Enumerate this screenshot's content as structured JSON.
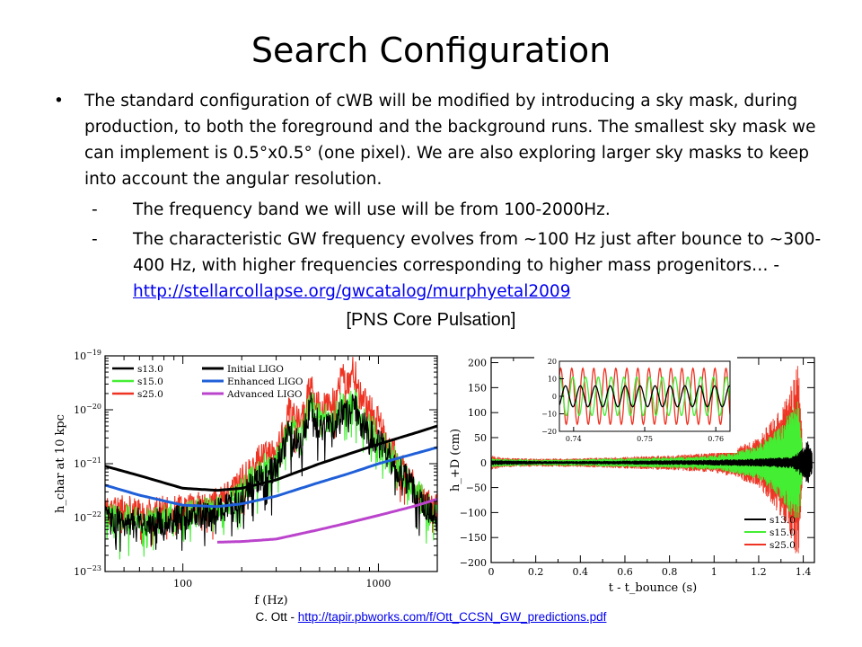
{
  "slide": {
    "title": "Search Configuration",
    "bullet_mark": "•",
    "bullet_text": "The standard configuration of cWB will be modified by introducing a sky mask, during production, to both the foreground and the background runs. The smallest sky mask we can implement is 0.5°x0.5° (one pixel). We are also  exploring larger sky masks to keep into account the angular resolution.",
    "sub_mark": "-",
    "sub1_text": "The frequency band we will use will be from 100-2000Hz.",
    "sub2_text": "The characteristic GW frequency evolves from ~100 Hz just after bounce to ~300-400 Hz, with higher frequencies corresponding to higher mass progenitors… - ",
    "sub2_link": "http://stellarcollapse.org/gwcatalog/murphyetal2009",
    "figure_caption": "[PNS Core Pulsation]",
    "credit_prefix": "C. Ott - ",
    "credit_link": "http://tapir.pbworks.com/f/Ott_CCSN_GW_predictions.pdf"
  },
  "colors": {
    "s13": "#000000",
    "s15": "#44ee33",
    "s25": "#ee3322",
    "initial": "#000000",
    "enhanced": "#1f5fd8",
    "advanced": "#bb44cc"
  },
  "chart_data": [
    {
      "type": "line",
      "xlabel": "f (Hz)",
      "ylabel": "h_char at 10 kpc",
      "x_scale": "log",
      "y_scale": "log",
      "xlim": [
        40,
        2000
      ],
      "ylim": [
        1e-23,
        1e-19
      ],
      "x_ticks": [
        100,
        1000
      ],
      "x_tick_labels": [
        "100",
        "1000"
      ],
      "y_tick_labels": [
        "10^-19",
        "10^-20",
        "10^-21",
        "10^-22",
        "10^-23"
      ],
      "legend_left": [
        "s13.0",
        "s15.0",
        "s25.0"
      ],
      "legend_right": [
        "Initial LIGO",
        "Enhanced LIGO",
        "Advanced LIGO"
      ],
      "series": [
        {
          "name": "Initial LIGO",
          "x": [
            40,
            60,
            100,
            150,
            200,
            300,
            500,
            700,
            1000,
            1500,
            2000
          ],
          "y": [
            9e-22,
            6e-22,
            3.5e-22,
            3.2e-22,
            3.5e-22,
            5e-22,
            1e-21,
            1.5e-21,
            2.3e-21,
            3.6e-21,
            5e-21
          ]
        },
        {
          "name": "Enhanced LIGO",
          "x": [
            40,
            60,
            100,
            150,
            200,
            300,
            500,
            700,
            1000,
            1500,
            2000
          ],
          "y": [
            4e-22,
            2.6e-22,
            1.7e-22,
            1.6e-22,
            1.8e-22,
            2.5e-22,
            4.5e-22,
            6.5e-22,
            1e-21,
            1.5e-21,
            2e-21
          ]
        },
        {
          "name": "Advanced LIGO",
          "x": [
            150,
            200,
            300,
            500,
            700,
            1000,
            1500,
            2000
          ],
          "y": [
            3.5e-23,
            3.6e-23,
            4e-23,
            6e-23,
            8e-23,
            1.1e-22,
            1.6e-22,
            2.2e-22
          ]
        },
        {
          "name": "s25.0",
          "x": [
            40,
            70,
            100,
            150,
            200,
            250,
            300,
            350,
            400,
            450,
            500,
            600,
            650,
            700,
            750,
            800,
            1000,
            1300,
            1700,
            2000
          ],
          "y": [
            1.5e-22,
            1.3e-22,
            1.5e-22,
            2e-22,
            5e-22,
            1.3e-21,
            1.5e-21,
            1e-20,
            5e-21,
            3e-20,
            1e-20,
            1.5e-20,
            4e-20,
            3e-20,
            6e-20,
            2e-20,
            6e-21,
            1e-21,
            2e-22,
            1.5e-22
          ]
        },
        {
          "name": "s15.0",
          "x": [
            40,
            70,
            100,
            150,
            200,
            250,
            300,
            350,
            400,
            450,
            500,
            600,
            650,
            700,
            750,
            800,
            1000,
            1300,
            1700,
            2000
          ],
          "y": [
            1e-22,
            9e-23,
            1.1e-22,
            1.5e-22,
            3e-22,
            8e-22,
            1e-21,
            6e-21,
            3e-21,
            1.6e-20,
            7e-21,
            7e-21,
            1.5e-20,
            1.2e-20,
            2e-20,
            8e-21,
            3e-21,
            8e-22,
            2e-22,
            1e-22
          ]
        },
        {
          "name": "s13.0",
          "x": [
            40,
            70,
            100,
            150,
            200,
            250,
            300,
            350,
            400,
            450,
            500,
            600,
            650,
            700,
            750,
            800,
            1000,
            1300,
            1700,
            2000
          ],
          "y": [
            9e-23,
            8e-23,
            1e-22,
            1.3e-22,
            2.5e-22,
            6e-22,
            8e-22,
            4e-21,
            2e-21,
            1.2e-20,
            5e-21,
            5e-21,
            1e-20,
            8e-21,
            1.4e-20,
            6e-21,
            2.5e-21,
            7e-22,
            1.8e-22,
            1e-22
          ]
        }
      ]
    },
    {
      "type": "line",
      "xlabel": "t - t_bounce (s)",
      "ylabel": "h_+D (cm)",
      "xlim": [
        0,
        1.45
      ],
      "ylim": [
        -200,
        210
      ],
      "x_tick_labels": [
        "0",
        "0.2",
        "0.4",
        "0.6",
        "0.8",
        "1",
        "1.2",
        "1.4"
      ],
      "y_tick_labels": [
        "200",
        "150",
        "100",
        "50",
        "0",
        "−50",
        "−100",
        "−150",
        "−200"
      ],
      "legend": [
        "s13.0",
        "s15.0",
        "s25.0"
      ],
      "envelope_series": [
        {
          "name": "s25.0",
          "t": [
            0,
            0.05,
            0.2,
            0.4,
            0.6,
            0.8,
            1.0,
            1.1,
            1.2,
            1.25,
            1.3,
            1.35,
            1.37,
            1.38,
            1.4
          ],
          "amp": [
            15,
            10,
            8,
            9,
            12,
            15,
            20,
            30,
            50,
            80,
            110,
            160,
            190,
            200,
            0
          ]
        },
        {
          "name": "s15.0",
          "t": [
            0,
            0.05,
            0.2,
            0.4,
            0.6,
            0.8,
            1.0,
            1.1,
            1.2,
            1.25,
            1.3,
            1.35,
            1.37,
            1.38,
            1.4
          ],
          "amp": [
            10,
            8,
            6,
            7,
            9,
            11,
            15,
            22,
            35,
            55,
            75,
            110,
            120,
            125,
            0
          ]
        },
        {
          "name": "s13.0",
          "t": [
            0,
            0.1,
            0.3,
            0.6,
            0.9,
            1.2,
            1.35,
            1.4,
            1.42,
            1.44
          ],
          "amp": [
            5,
            4,
            3,
            4,
            5,
            8,
            12,
            30,
            45,
            20
          ]
        }
      ],
      "inset": {
        "xlim": [
          0.738,
          0.762
        ],
        "ylim": [
          -20,
          20
        ],
        "x_tick_labels": [
          "0.74",
          "0.75",
          "0.76"
        ],
        "y_tick_labels": [
          "20",
          "10",
          "0",
          "−10",
          "−20"
        ],
        "series": [
          {
            "name": "s25.0",
            "amplitude": 16,
            "period": 0.00155
          },
          {
            "name": "s15.0",
            "amplitude": 11,
            "period": 0.0018
          },
          {
            "name": "s13.0",
            "amplitude": 6,
            "period": 0.0021
          }
        ]
      }
    }
  ]
}
